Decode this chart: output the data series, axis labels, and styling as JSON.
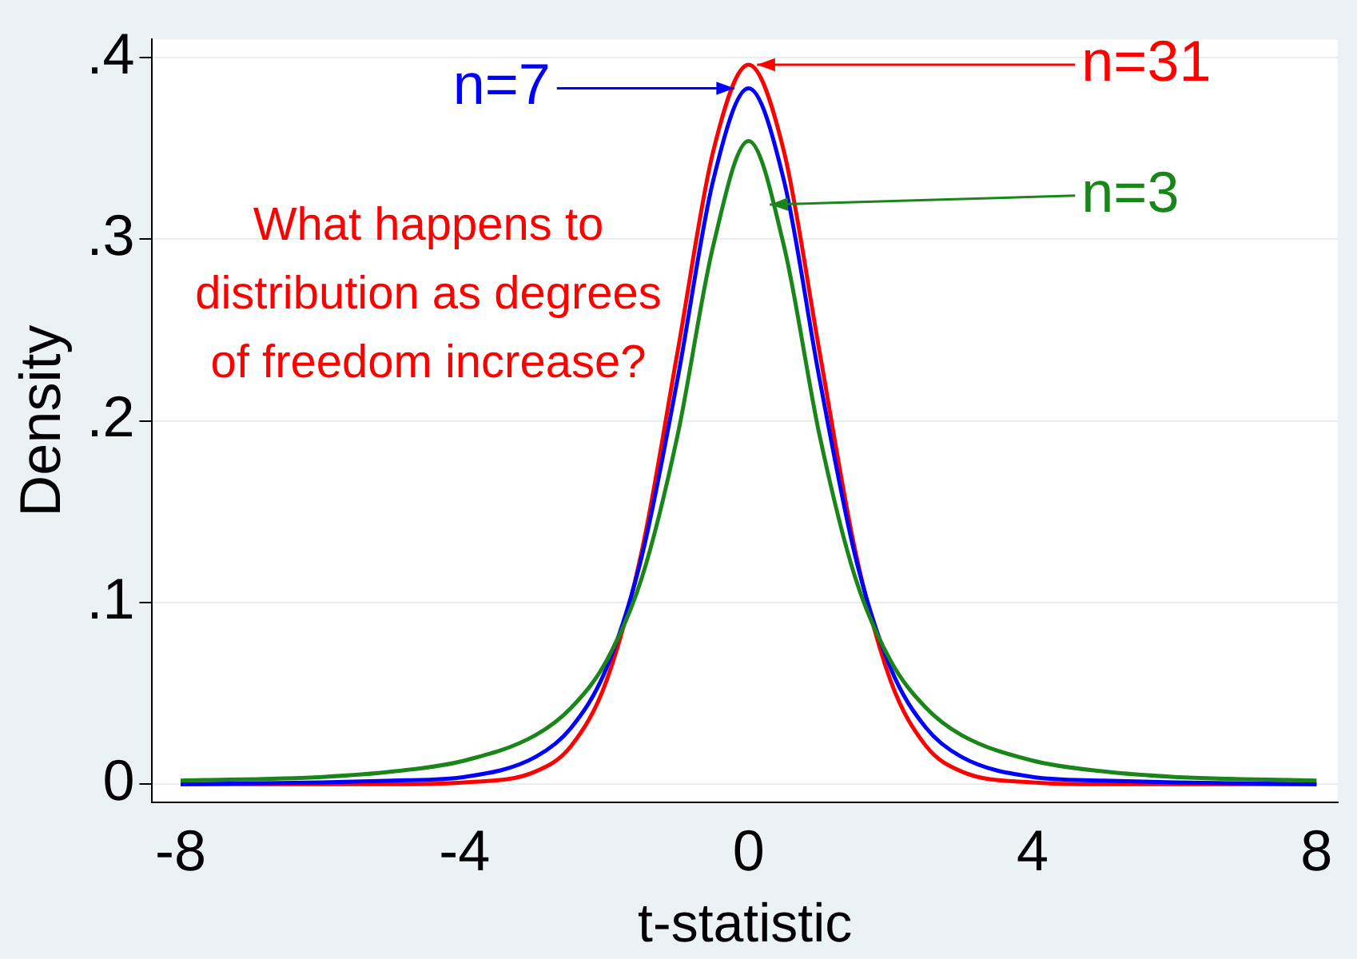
{
  "chart_data": {
    "type": "line",
    "xlabel": "t-statistic",
    "ylabel": "Density",
    "x": [
      -8,
      -6,
      -5,
      -4,
      -3,
      -2.5,
      -2,
      -1.5,
      -1,
      -0.5,
      0,
      0.5,
      1,
      1.5,
      2,
      2.5,
      3,
      4,
      5,
      6,
      8
    ],
    "series": [
      {
        "name": "n=3",
        "color": "#1a861a",
        "values": [
          0.002,
          0.004,
          0.007,
          0.013,
          0.027,
          0.042,
          0.068,
          0.114,
          0.192,
          0.296,
          0.354,
          0.296,
          0.192,
          0.114,
          0.068,
          0.042,
          0.027,
          0.013,
          0.007,
          0.004,
          0.002
        ]
      },
      {
        "name": "n=7",
        "color": "#0000ff",
        "values": [
          0.0,
          0.001,
          0.002,
          0.004,
          0.015,
          0.031,
          0.064,
          0.126,
          0.223,
          0.332,
          0.383,
          0.332,
          0.223,
          0.126,
          0.064,
          0.031,
          0.015,
          0.004,
          0.002,
          0.001,
          0.0
        ]
      },
      {
        "name": "n=31",
        "color": "#ff0000",
        "values": [
          0,
          0,
          0,
          0.001,
          0.007,
          0.021,
          0.057,
          0.129,
          0.238,
          0.348,
          0.396,
          0.348,
          0.238,
          0.129,
          0.057,
          0.021,
          0.007,
          0.001,
          0,
          0,
          0
        ]
      }
    ],
    "xlim": [
      -8.4,
      8.3
    ],
    "xticks": [
      -8,
      -4,
      0,
      4,
      8
    ],
    "ylim": [
      -0.01,
      0.41
    ],
    "yticks": [
      {
        "value": 0,
        "label": "0"
      },
      {
        "value": 0.1,
        "label": ".1"
      },
      {
        "value": 0.2,
        "label": ".2"
      },
      {
        "value": 0.3,
        "label": ".3"
      },
      {
        "value": 0.4,
        "label": ".4"
      }
    ],
    "grid": "y",
    "marker": "none",
    "line_style": "solid",
    "legend": "top",
    "annotations": [
      "What happens to distribution as degrees of freedom increase?"
    ]
  }
}
